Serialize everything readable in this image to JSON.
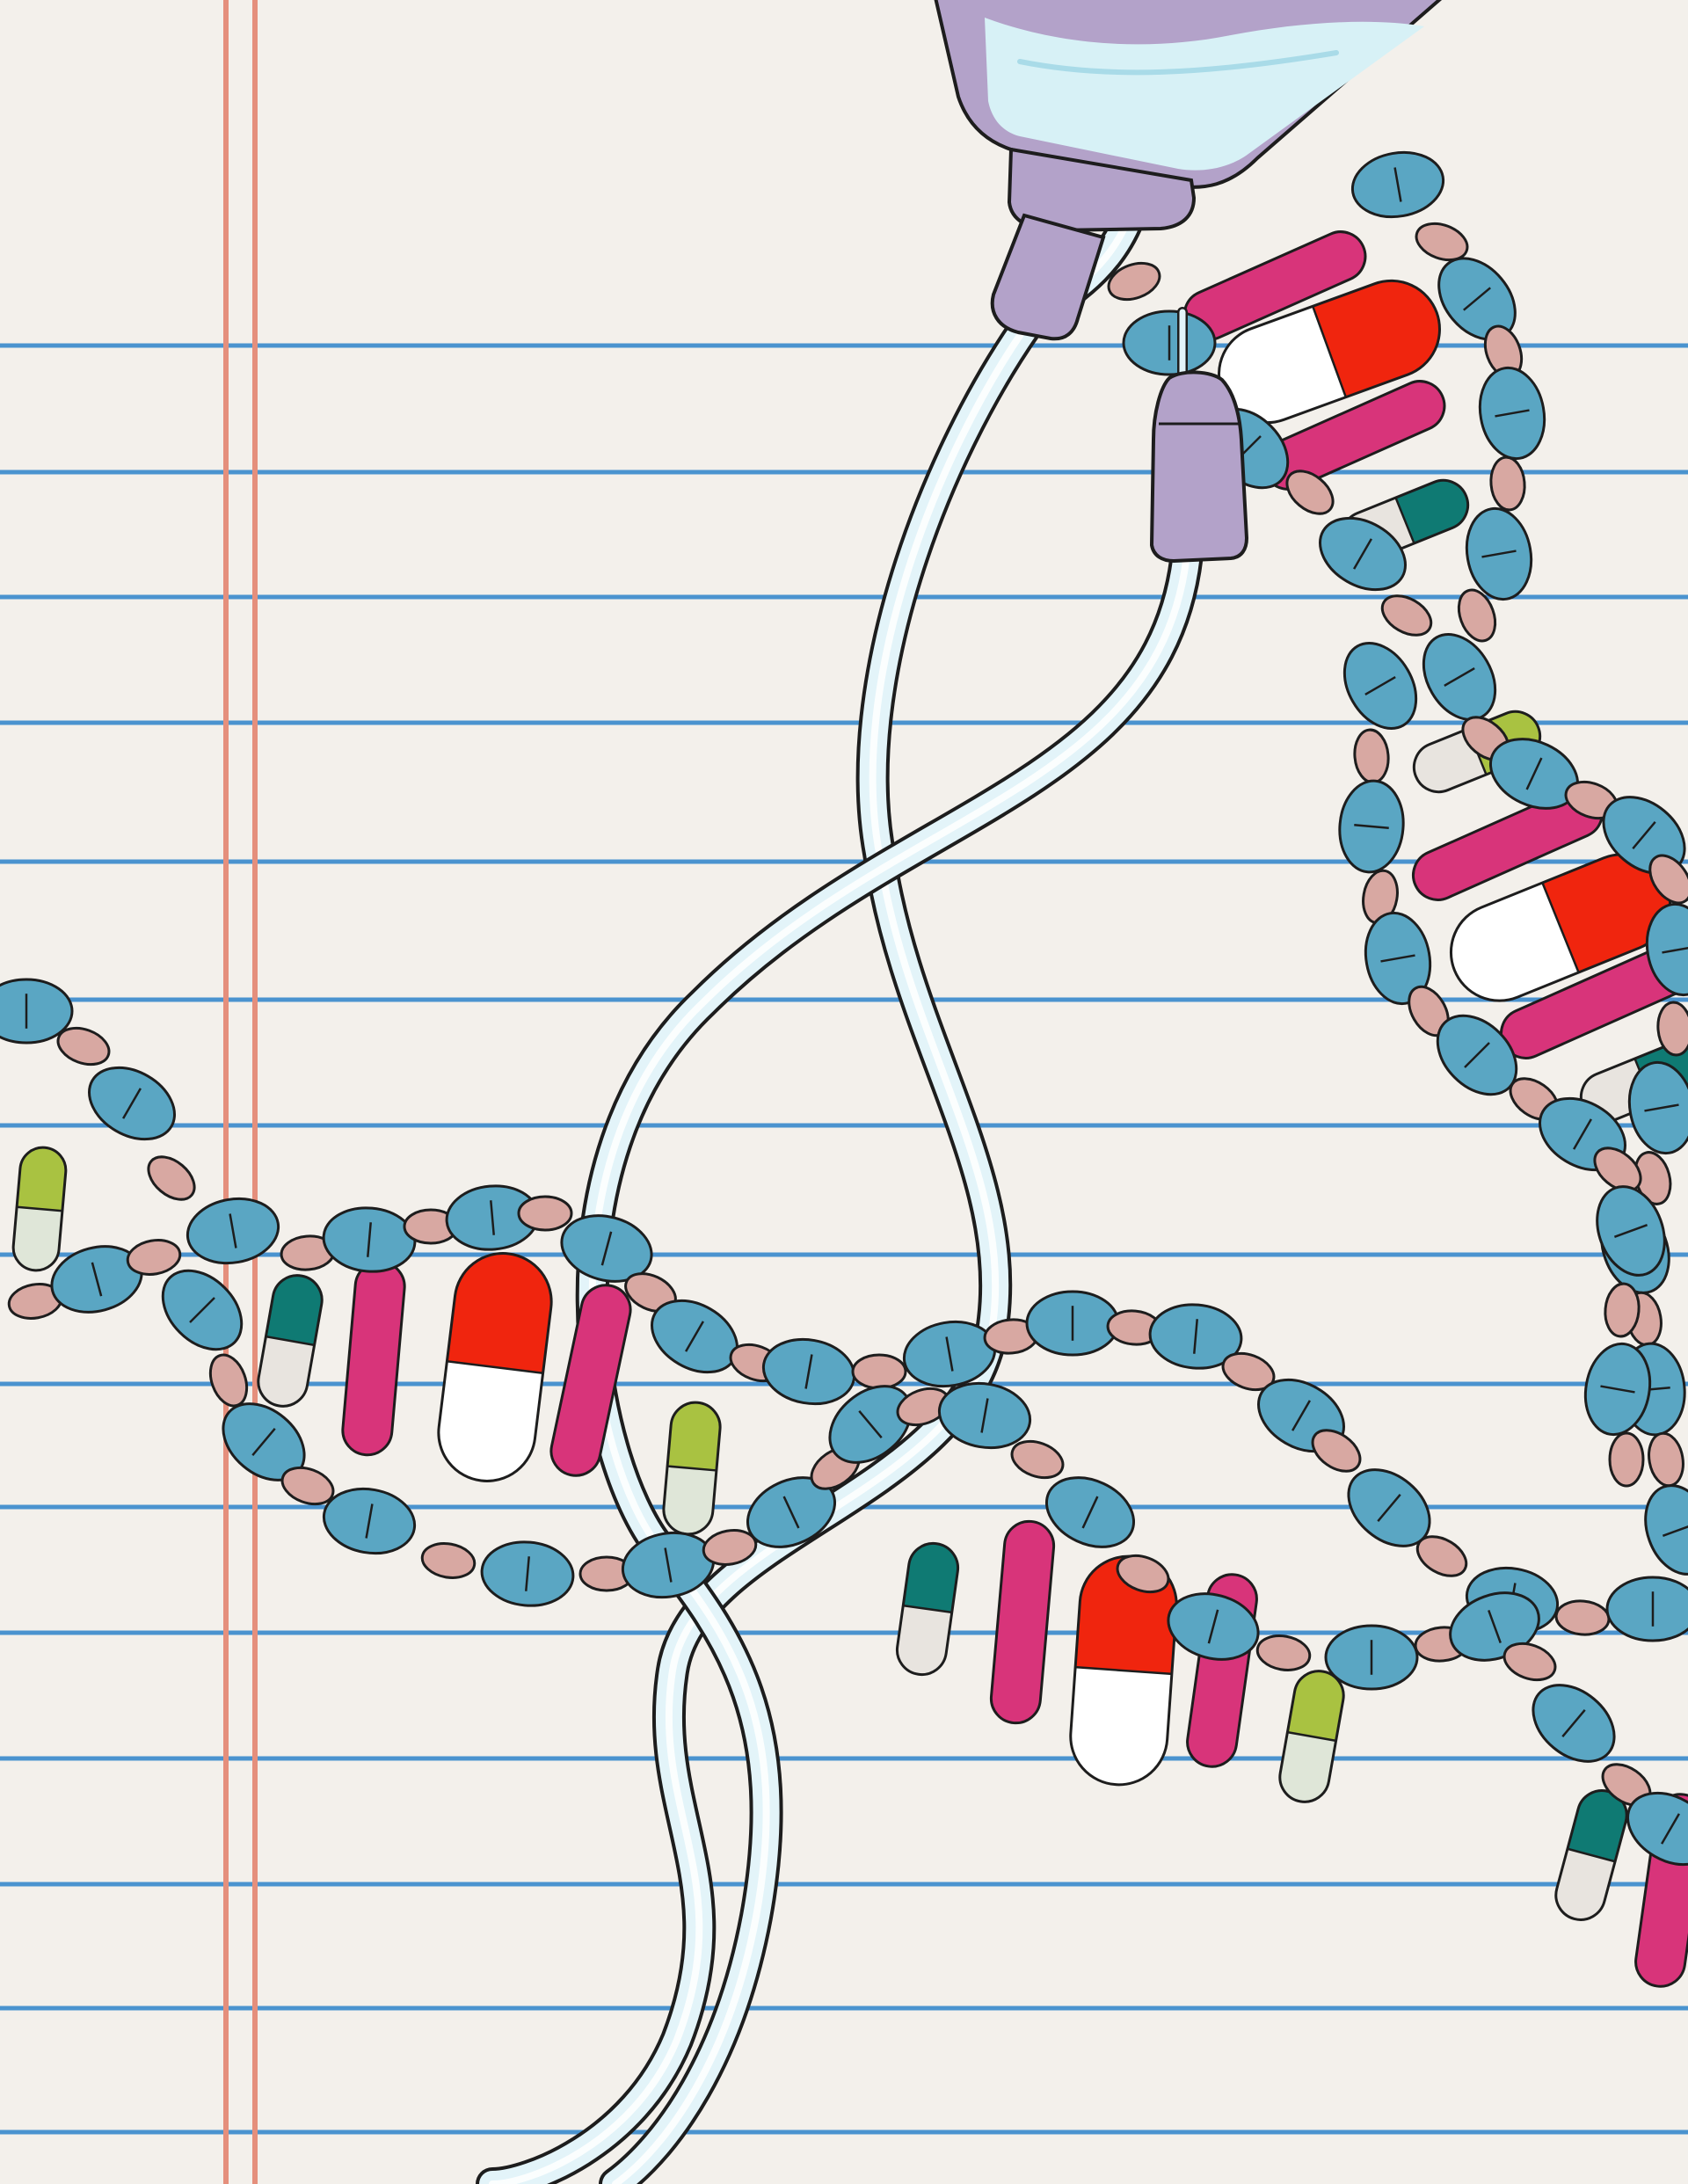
{
  "illustration": {
    "subject": "notebook-paper-dna-helix-of-pills-with-iv-bag",
    "palette": {
      "paper": "#f3f0eb",
      "rule_line": "#4a93cf",
      "margin_line": "#e58f7c",
      "blue_pill": "#5aa6c3",
      "pink_pill": "#d8a8a2",
      "magenta_pill": "#d8347a",
      "red_capsule": "#f0250e",
      "teal_capsule": "#0f7a73",
      "green_capsule": "#a9c241",
      "iv_bag": "#b3a2c9",
      "iv_fluid": "#d7f1f6",
      "iv_tube": "#e3f4f9",
      "outline": "#1d1d1d"
    },
    "icons": [
      "iv-bag-icon",
      "iv-tube-icon",
      "dna-helix-icon",
      "capsule-icon",
      "tablet-icon"
    ]
  }
}
